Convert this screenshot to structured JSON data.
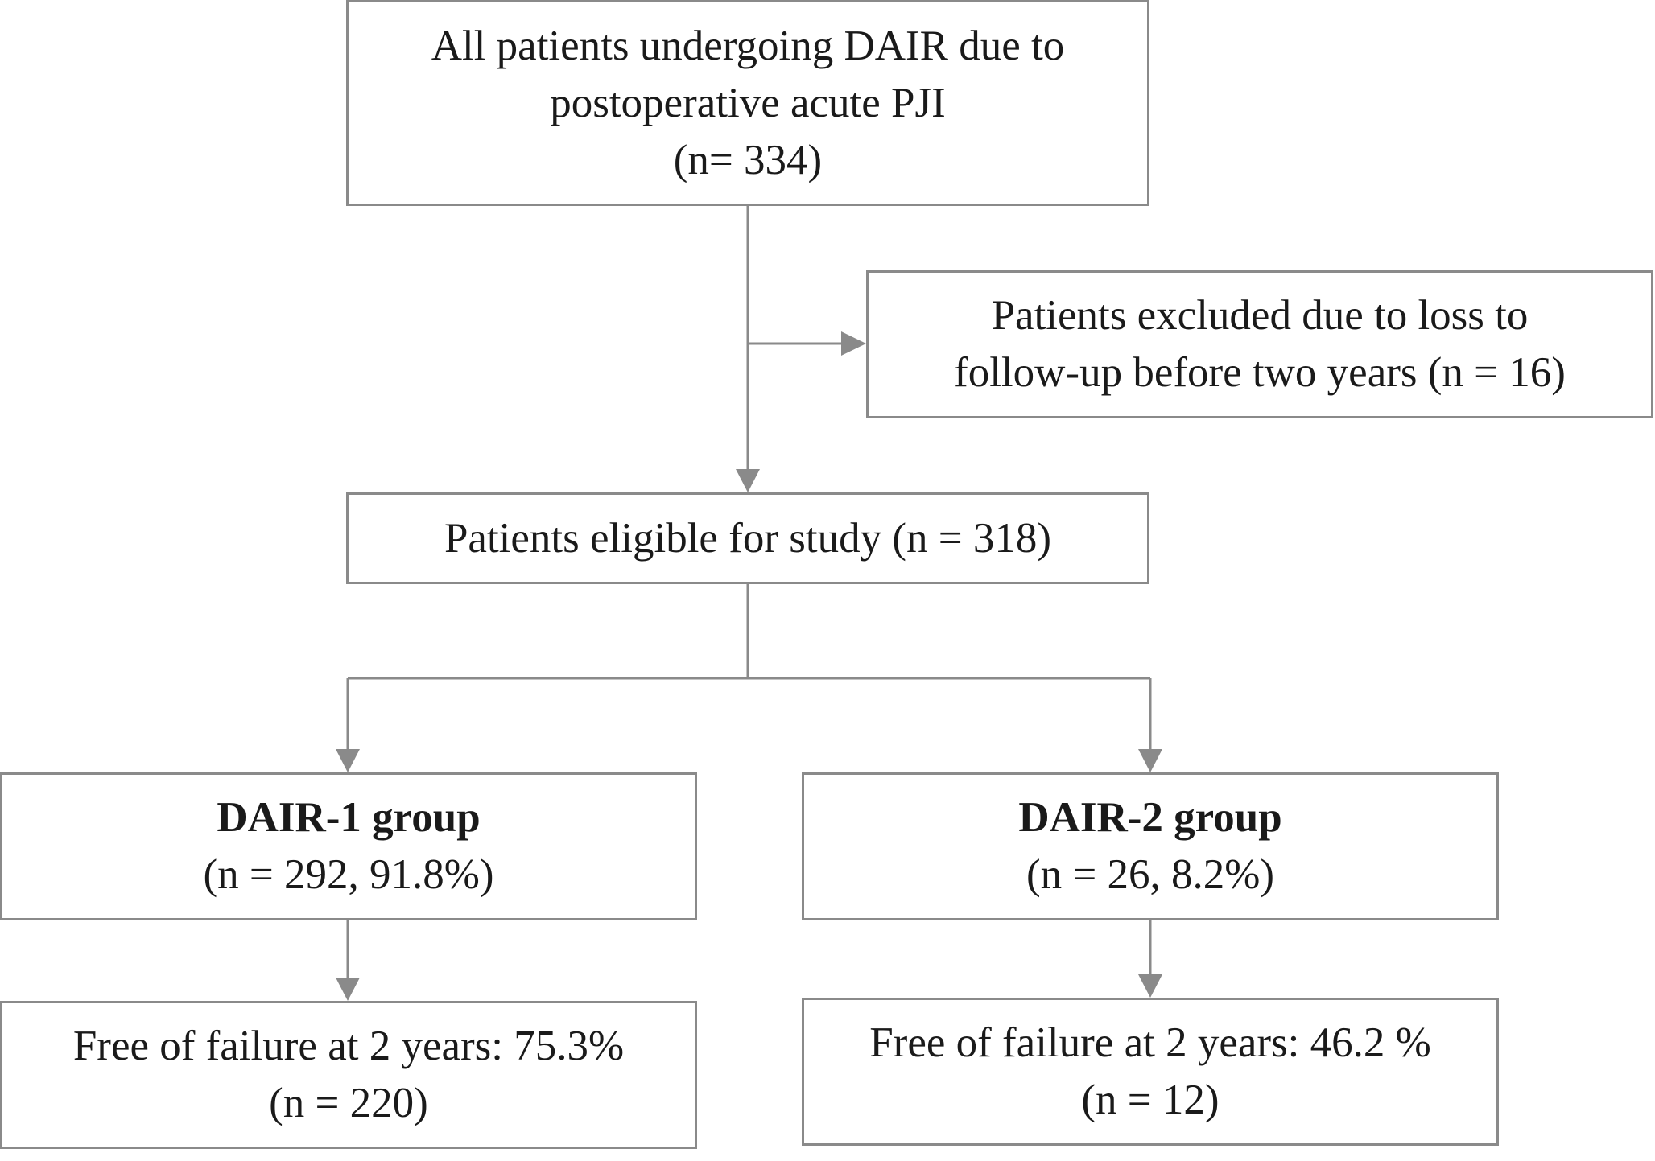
{
  "flowchart": {
    "total": {
      "line1": "All patients undergoing DAIR due to",
      "line2": "postoperative acute PJI",
      "line3": "(n= 334)"
    },
    "excluded": {
      "line1": "Patients excluded due to loss to",
      "line2": "follow-up before two years (n = 16)"
    },
    "eligible": {
      "line1": "Patients eligible for study (n = 318)"
    },
    "group1": {
      "title": "DAIR-1 group",
      "count": "(n = 292, 91.8%)"
    },
    "group2": {
      "title": "DAIR-2 group",
      "count": "(n = 26, 8.2%)"
    },
    "outcome1": {
      "line1": "Free of failure at 2 years: 75.3%",
      "line2": "(n = 220)"
    },
    "outcome2": {
      "line1": "Free of failure at 2 years: 46.2 %",
      "line2": "(n = 12)"
    }
  },
  "colors": {
    "border": "#8a8a8a",
    "connector": "#8a8a8a",
    "text": "#1a1a1a",
    "background": "#ffffff"
  }
}
